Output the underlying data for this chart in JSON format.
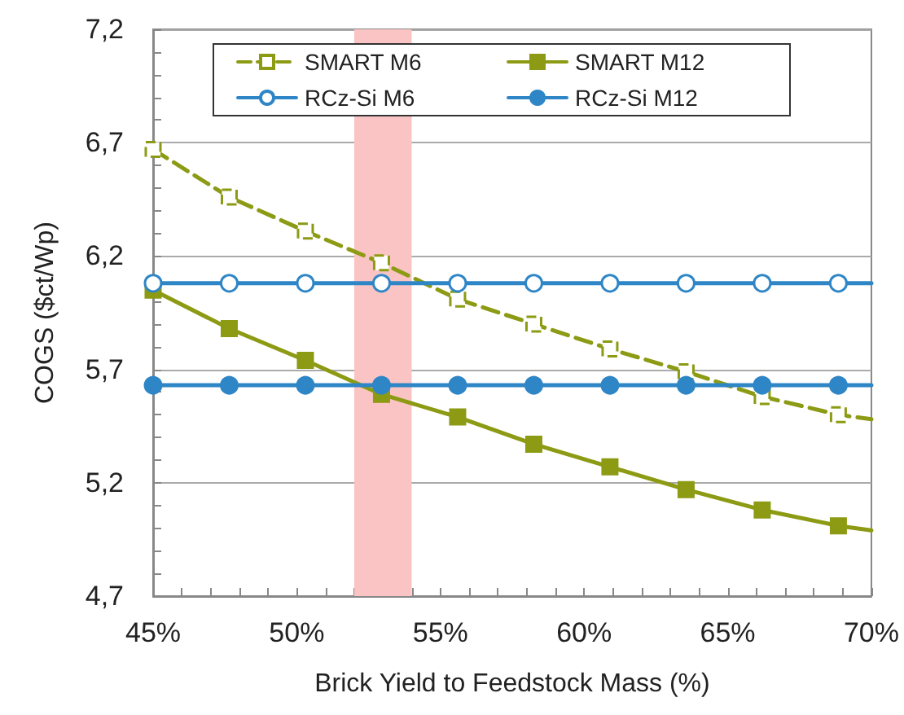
{
  "chart_data": {
    "type": "line",
    "xlabel": "Brick Yield to Feedstock Mass (%)",
    "ylabel": "COGS ($ct/Wp)",
    "x": [
      45,
      47.65,
      50.3,
      52.95,
      55.6,
      58.25,
      60.9,
      63.55,
      66.2,
      68.85,
      70
    ],
    "series": [
      {
        "name": "SMART M6",
        "color": "#8c9b13",
        "marker": "square",
        "line_style": "dashed",
        "values": [
          6.67,
          6.46,
          6.31,
          6.17,
          6.01,
          5.9,
          5.79,
          5.69,
          5.58,
          5.5,
          5.48
        ]
      },
      {
        "name": "SMART M12",
        "color": "#8c9b13",
        "marker": "square",
        "line_style": "solid",
        "values": [
          6.05,
          5.88,
          5.74,
          5.59,
          5.49,
          5.37,
          5.27,
          5.17,
          5.08,
          5.01,
          4.99
        ]
      },
      {
        "name": "RCz-Si M6",
        "color": "#2f86c6",
        "marker": "circle",
        "line_style": "solid",
        "values": [
          6.08,
          6.08,
          6.08,
          6.08,
          6.08,
          6.08,
          6.08,
          6.08,
          6.08,
          6.08,
          6.08
        ]
      },
      {
        "name": "RCz-Si M12",
        "color": "#2f86c6",
        "marker": "circle",
        "line_style": "solid",
        "values": [
          5.63,
          5.63,
          5.63,
          5.63,
          5.63,
          5.63,
          5.63,
          5.63,
          5.63,
          5.63,
          5.63
        ]
      }
    ],
    "xlim": [
      45,
      70
    ],
    "xticks": [
      {
        "value": 45,
        "label": "45%"
      },
      {
        "value": 46,
        "label": null
      },
      {
        "value": 47,
        "label": null
      },
      {
        "value": 48,
        "label": null
      },
      {
        "value": 49,
        "label": null
      },
      {
        "value": 50,
        "label": "50%"
      },
      {
        "value": 51,
        "label": null
      },
      {
        "value": 52,
        "label": null
      },
      {
        "value": 53,
        "label": null
      },
      {
        "value": 54,
        "label": null
      },
      {
        "value": 55,
        "label": "55%"
      },
      {
        "value": 56,
        "label": null
      },
      {
        "value": 57,
        "label": null
      },
      {
        "value": 58,
        "label": null
      },
      {
        "value": 59,
        "label": null
      },
      {
        "value": 60,
        "label": "60%"
      },
      {
        "value": 61,
        "label": null
      },
      {
        "value": 62,
        "label": null
      },
      {
        "value": 63,
        "label": null
      },
      {
        "value": 64,
        "label": null
      },
      {
        "value": 65,
        "label": "65%"
      },
      {
        "value": 66,
        "label": null
      },
      {
        "value": 67,
        "label": null
      },
      {
        "value": 68,
        "label": null
      },
      {
        "value": 69,
        "label": null
      },
      {
        "value": 70,
        "label": "70%"
      }
    ],
    "ylim": [
      4.7,
      7.2
    ],
    "yticks": [
      {
        "value": 4.7,
        "label": "4,7"
      },
      {
        "value": 4.8,
        "label": null
      },
      {
        "value": 4.9,
        "label": null
      },
      {
        "value": 5.0,
        "label": null
      },
      {
        "value": 5.1,
        "label": null
      },
      {
        "value": 5.2,
        "label": "5,2"
      },
      {
        "value": 5.3,
        "label": null
      },
      {
        "value": 5.4,
        "label": null
      },
      {
        "value": 5.5,
        "label": null
      },
      {
        "value": 5.6,
        "label": null
      },
      {
        "value": 5.7,
        "label": "5,7"
      },
      {
        "value": 5.8,
        "label": null
      },
      {
        "value": 5.9,
        "label": null
      },
      {
        "value": 6.0,
        "label": null
      },
      {
        "value": 6.1,
        "label": null
      },
      {
        "value": 6.2,
        "label": "6,2"
      },
      {
        "value": 6.3,
        "label": null
      },
      {
        "value": 6.4,
        "label": null
      },
      {
        "value": 6.5,
        "label": null
      },
      {
        "value": 6.6,
        "label": null
      },
      {
        "value": 6.7,
        "label": "6,7"
      },
      {
        "value": 6.8,
        "label": null
      },
      {
        "value": 6.9,
        "label": null
      },
      {
        "value": 7.0,
        "label": null
      },
      {
        "value": 7.1,
        "label": null
      },
      {
        "value": 7.2,
        "label": "7,2"
      }
    ],
    "bands": [
      {
        "axis": "x",
        "from": 52,
        "to": 54,
        "color": "#fbc4c4"
      }
    ],
    "grid": "y",
    "legend": "top"
  }
}
